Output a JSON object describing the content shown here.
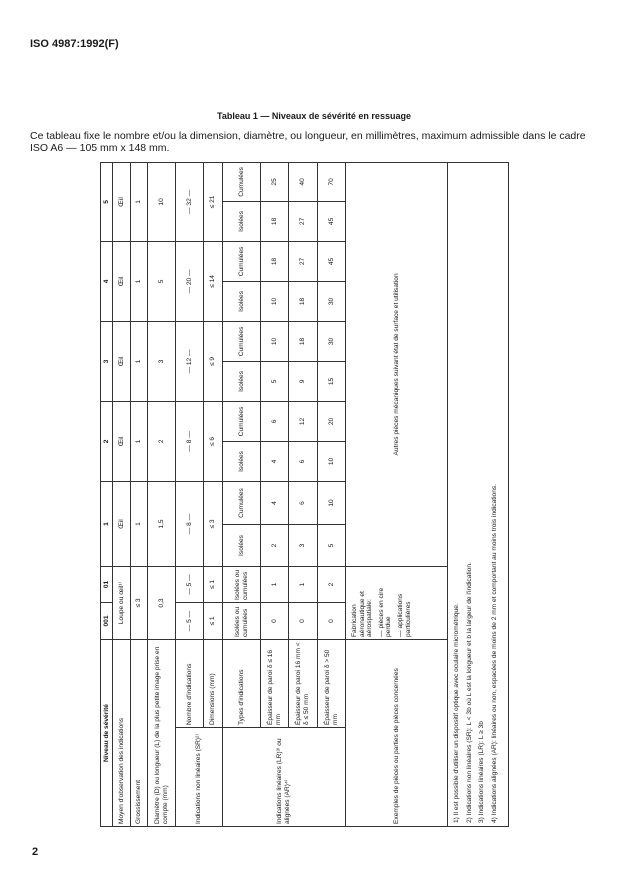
{
  "header": {
    "doc_id": "ISO 4987:1992(F)"
  },
  "title": "Tableau 1 — Niveaux de sévérité en ressuage",
  "intro": "Ce tableau fixe le nombre et/ou la dimension, diamètre, ou longueur, en millimètres, maximum admissible dans le cadre ISO A6 — 105 mm x 148 mm.",
  "table": {
    "header_label": "Niveau de sévérité",
    "levels": [
      "001",
      "01",
      "1",
      "2",
      "3",
      "4",
      "5"
    ],
    "observation": {
      "label": "Moyen d'observation des indications",
      "low": "Loupe ou œil¹⁾",
      "values": [
        "Œil",
        "Œil",
        "Œil",
        "Œil",
        "Œil"
      ]
    },
    "magnification": {
      "label": "Grossissement",
      "low": "≤ 3",
      "values": [
        "1",
        "1",
        "1",
        "1",
        "1"
      ]
    },
    "diameter": {
      "label": "Diamètre (D) ou longueur (L) de la plus petite image prise en compte (mm)",
      "low": "0,3",
      "values": [
        "1,5",
        "2",
        "3",
        "5",
        "10"
      ]
    },
    "non_linear": {
      "label": "Indications non linéaires (SR)²⁾",
      "count": {
        "label": "Nombre d'indications",
        "values": [
          "— 5 —",
          "— 5 —",
          "— 8 —",
          "— 8 —",
          "— 12 —",
          "— 20 —",
          "— 32 —"
        ]
      },
      "dimensions": {
        "label": "Dimensions (mm)",
        "values": [
          "≤ 1",
          "≤ 1",
          "≤ 3",
          "≤ 6",
          "≤ 9",
          "≤ 14",
          "≤ 21"
        ]
      }
    },
    "linear": {
      "label": "Indications linéaires (LR)³⁾ ou alignées (AR)⁴⁾",
      "types": {
        "label": "Types d'indications",
        "low": [
          "Isolées ou cumulées",
          "Isolées ou cumulées"
        ],
        "isolated": "Isolées",
        "cumulated": "Cumulées"
      },
      "rows": [
        {
          "label": "Épaisseur de paroi δ ≤ 16 mm",
          "values": [
            "0",
            "1",
            "2",
            "4",
            "4",
            "6",
            "5",
            "10",
            "10",
            "18",
            "18",
            "25"
          ]
        },
        {
          "label": "Épaisseur de paroi 16 mm < δ ≤ 50 mm",
          "values": [
            "0",
            "1",
            "3",
            "6",
            "6",
            "12",
            "9",
            "18",
            "18",
            "27",
            "27",
            "40"
          ]
        },
        {
          "label": "Épaisseur de paroi δ > 50 mm",
          "values": [
            "0",
            "2",
            "5",
            "10",
            "10",
            "20",
            "15",
            "30",
            "30",
            "45",
            "45",
            "70"
          ]
        }
      ]
    },
    "examples": {
      "label": "Exemples de pièces ou parties de pièces concernées",
      "low_title": "Fabrication aéronautique et aérospatiale:",
      "low_items": [
        "— pièces en cire perdue",
        "— applications particulières"
      ],
      "high": "Autres pièces mécaniques suivant état de surface et utilisation"
    },
    "footnotes": [
      "1)  Il est possible d'utiliser un dispositif optique avec oculaire micrométrique.",
      "2)  Indications non linéaires (SR): L < 3b où L est la longueur et b la largeur de l'indication.",
      "3)  Indications linéaires (LR): L ≥ 3b",
      "4)  Indications alignées (AR): linéaires ou non, espacées de moins de 2 mm et comportant au moins trois indications."
    ]
  },
  "page_number": "2"
}
